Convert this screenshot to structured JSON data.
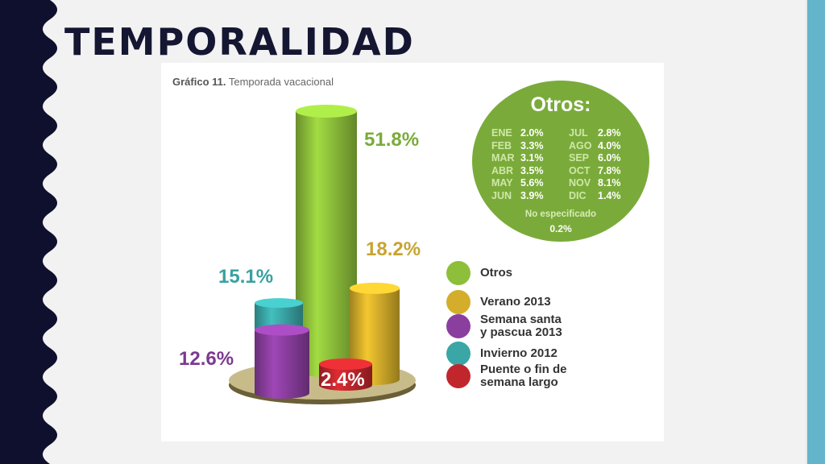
{
  "page": {
    "title": "TEMPORALIDAD"
  },
  "colors": {
    "sidebar": "#0f0f2e",
    "accent_bar": "#64b4cc",
    "otros_circle": "#7aab3a"
  },
  "chart_data": {
    "type": "bar",
    "title": "Gráfico 11.",
    "subtitle": "Temporada vacacional",
    "categories": [
      "Otros",
      "Verano 2013",
      "Semana santa y pascua 2013",
      "Invierno 2012",
      "Puente o fin de semana largo"
    ],
    "values": [
      51.8,
      18.2,
      12.6,
      15.1,
      2.4
    ],
    "value_labels": [
      "51.8%",
      "18.2%",
      "12.6%",
      "15.1%",
      "2.4%"
    ],
    "colors": [
      "#8dbf3a",
      "#d4ad2a",
      "#8a3e9e",
      "#3aa6a6",
      "#c0262c"
    ],
    "legend": {
      "position": "right",
      "items": [
        {
          "label": "Otros",
          "color": "#8dbf3a"
        },
        {
          "label": "Verano 2013",
          "color": "#d4ad2a"
        },
        {
          "label": "Semana santa\ny pascua 2013",
          "color": "#8a3e9e"
        },
        {
          "label": "Invierno 2012",
          "color": "#3aa6a6"
        },
        {
          "label": "Puente o fin de\nsemana largo",
          "color": "#c0262c"
        }
      ]
    },
    "otros_breakdown": {
      "title": "Otros:",
      "months": [
        {
          "month": "ENE",
          "value": "2.0%"
        },
        {
          "month": "FEB",
          "value": "3.3%"
        },
        {
          "month": "MAR",
          "value": "3.1%"
        },
        {
          "month": "ABR",
          "value": "3.5%"
        },
        {
          "month": "MAY",
          "value": "5.6%"
        },
        {
          "month": "JUN",
          "value": "3.9%"
        },
        {
          "month": "JUL",
          "value": "2.8%"
        },
        {
          "month": "AGO",
          "value": "4.0%"
        },
        {
          "month": "SEP",
          "value": "6.0%"
        },
        {
          "month": "OCT",
          "value": "7.8%"
        },
        {
          "month": "NOV",
          "value": "8.1%"
        },
        {
          "month": "DIC",
          "value": "1.4%"
        }
      ],
      "not_specified_label": "No especificado",
      "not_specified_value": "0.2%"
    }
  }
}
